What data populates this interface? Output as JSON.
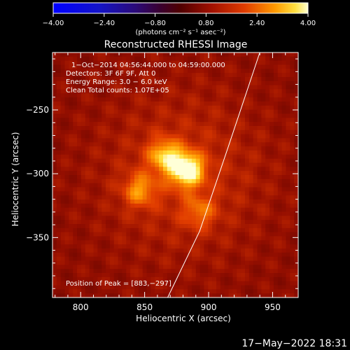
{
  "chart_data": {
    "type": "heatmap",
    "title": "Reconstructed RHESSI Image",
    "xlabel": "Heliocentric X (arcsec)",
    "ylabel": "Heliocentric Y (arcsec)",
    "xlim": [
      778,
      970
    ],
    "ylim": [
      -397,
      -205
    ],
    "x_ticks": [
      800,
      850,
      900,
      950
    ],
    "y_ticks": [
      -250,
      -300,
      -350
    ],
    "x_tick_labels": [
      "800",
      "850",
      "900",
      "950"
    ],
    "y_tick_labels": [
      "−250",
      "−300",
      "−350"
    ],
    "colorbar": {
      "range": [
        -4.0,
        4.0
      ],
      "ticks": [
        -4.0,
        -2.4,
        -0.8,
        0.8,
        2.4,
        4.0
      ],
      "tick_labels": [
        "−4.00",
        "−2.40",
        "−0.80",
        "0.80",
        "2.40",
        "4.00"
      ],
      "label": "(photons cm⁻² s⁻¹ asec⁻²)"
    },
    "annotations": [
      "1−Oct−2014 04:56:44.000 to 04:59:00.000",
      "Detectors: 3F 6F 9F, Att 0",
      "Energy Range: 3.0 − 6.0 keV",
      "Clean    Total counts: 1.07E+05"
    ],
    "peak_label": "Position of Peak = [883,−297]",
    "peak": [
      883,
      -297
    ],
    "sources": [
      {
        "x": 883,
        "y": -297,
        "intensity": 4.0
      },
      {
        "x": 866,
        "y": -286,
        "intensity": 2.6
      },
      {
        "x": 846,
        "y": -313,
        "intensity": 2.0
      },
      {
        "x": 893,
        "y": -330,
        "intensity": 1.5
      }
    ],
    "limb": [
      [
        940,
        -205
      ],
      [
        915,
        -280
      ],
      [
        893,
        -345
      ],
      [
        868,
        -397
      ]
    ]
  },
  "footer": {
    "date": "17−May−2022 18:31"
  }
}
